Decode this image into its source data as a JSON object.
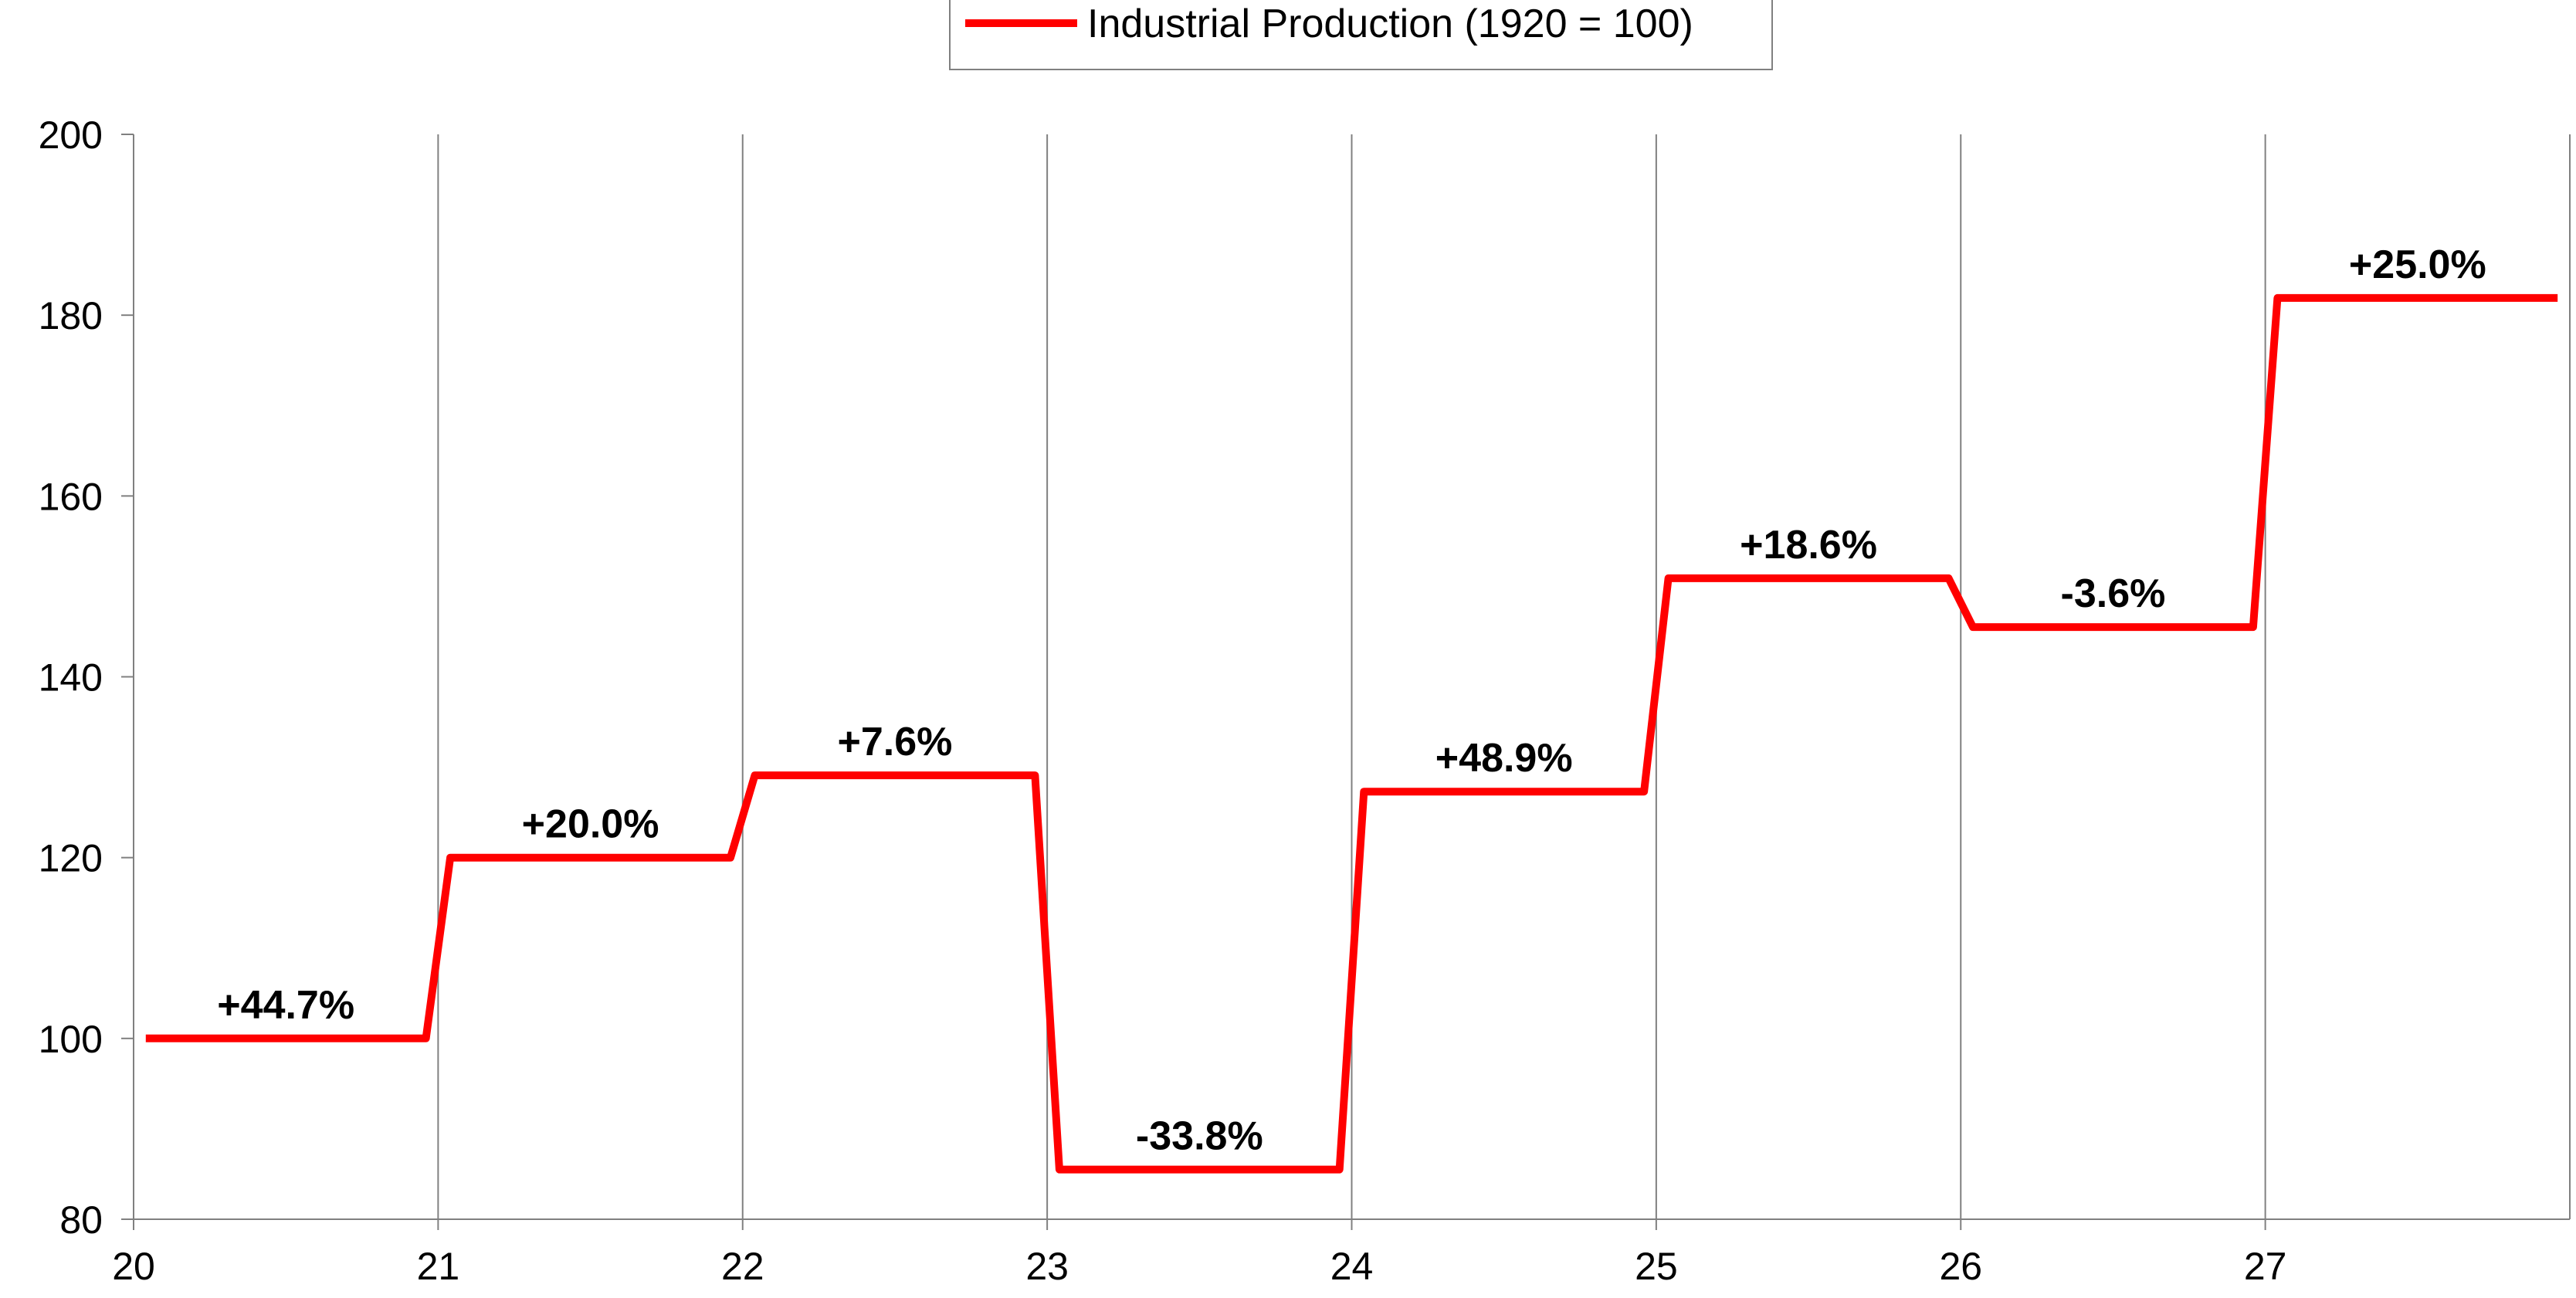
{
  "chart_data": {
    "type": "line",
    "x_ticks": [
      "20",
      "21",
      "22",
      "23",
      "24",
      "25",
      "26",
      "27"
    ],
    "xlim": [
      20,
      28
    ],
    "ylim": [
      80,
      200
    ],
    "y_ticks": [
      80,
      100,
      120,
      140,
      160,
      180,
      200
    ],
    "grid": {
      "vertical": true,
      "horizontal": false
    },
    "legend_position": "top-center",
    "series": [
      {
        "name": "Industrial Production (1920 = 100)",
        "color": "#ff0000",
        "style": "step",
        "segments": [
          {
            "from": 20,
            "to": 21,
            "value": 100.0,
            "label": "+44.7%"
          },
          {
            "from": 21,
            "to": 22,
            "value": 120.0,
            "label": "+20.0%"
          },
          {
            "from": 22,
            "to": 23,
            "value": 129.1,
            "label": "+7.6%"
          },
          {
            "from": 23,
            "to": 24,
            "value": 85.5,
            "label": "-33.8%"
          },
          {
            "from": 24,
            "to": 25,
            "value": 127.3,
            "label": "+48.9%"
          },
          {
            "from": 25,
            "to": 26,
            "value": 150.9,
            "label": "+18.6%"
          },
          {
            "from": 26,
            "to": 27,
            "value": 145.5,
            "label": "-3.6%"
          },
          {
            "from": 27,
            "to": 28,
            "value": 181.9,
            "label": "+25.0%"
          }
        ]
      }
    ]
  }
}
